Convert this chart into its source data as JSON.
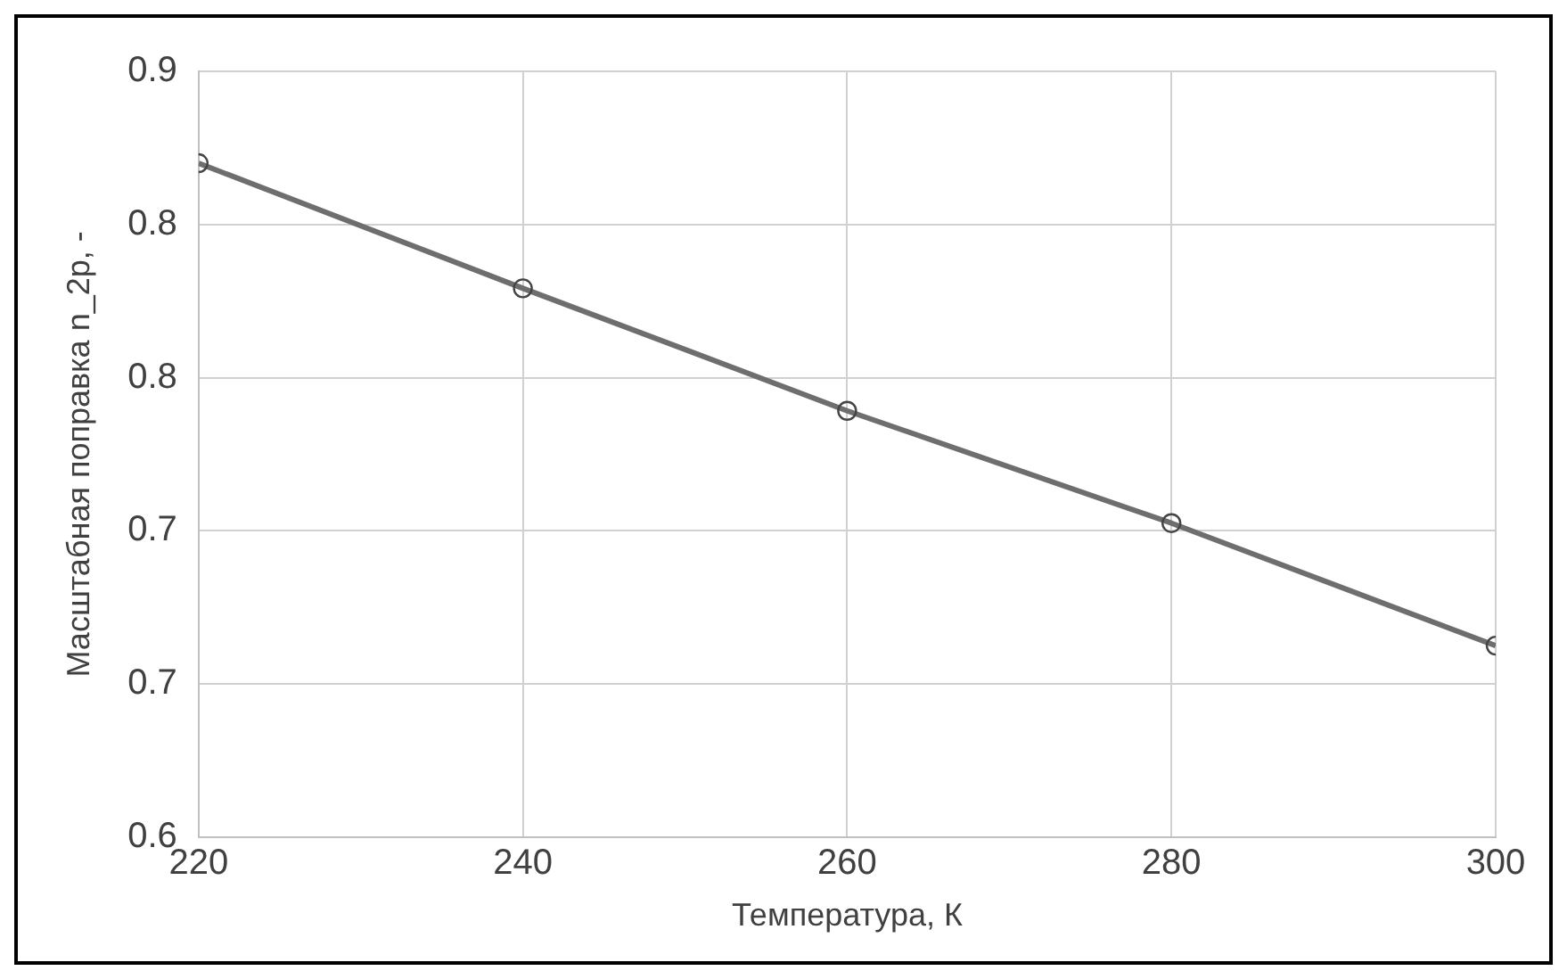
{
  "chart_data": {
    "type": "line",
    "xlabel": "Температура, К",
    "ylabel": "Масштабная поправка n_2p, -",
    "x": [
      220,
      240,
      260,
      280,
      300
    ],
    "series": [
      {
        "color": "#6e6e6e",
        "values": [
          0.864,
          0.815,
          0.767,
          0.723,
          0.675
        ]
      }
    ],
    "xlim": [
      220,
      300
    ],
    "xticks": [
      220,
      240,
      260,
      280,
      300
    ],
    "ylim": [
      0.6,
      0.9
    ],
    "yticks": [
      0.6,
      {
        "value": 0.66,
        "label": "0.7"
      },
      {
        "value": 0.72,
        "label": "0.7"
      },
      {
        "value": 0.78,
        "label": "0.8"
      },
      {
        "value": 0.84,
        "label": "0.8"
      },
      0.9
    ],
    "grid": true,
    "marker": "circle",
    "line_style": "solid",
    "legend": false
  }
}
